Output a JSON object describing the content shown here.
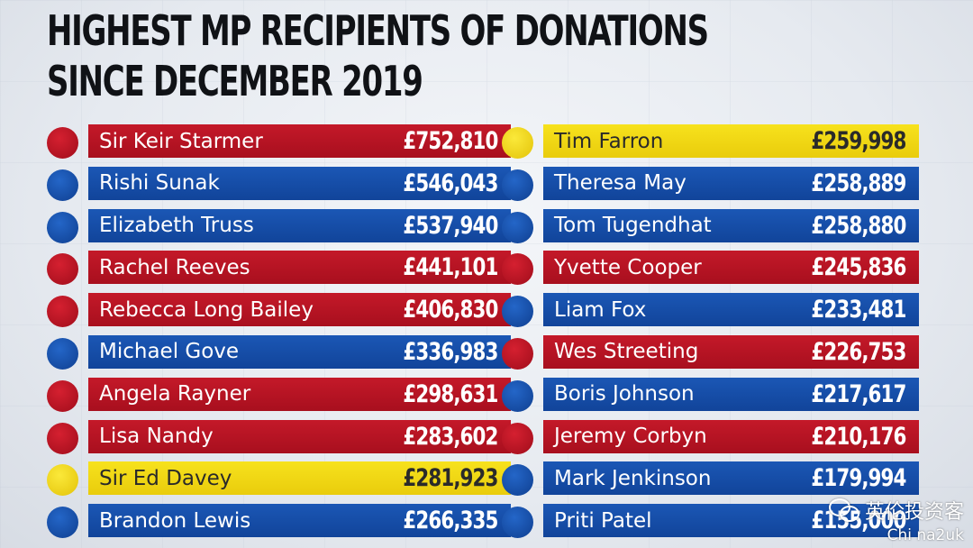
{
  "title": {
    "line1": "HIGHEST MP RECIPIENTS OF DONATIONS",
    "line2": "SINCE DECEMBER 2019"
  },
  "colors": {
    "red": "#b8141f",
    "blue": "#16499f",
    "yellow": "#f4dc17"
  },
  "left_column": [
    {
      "name": "Sir Keir Starmer",
      "amount": "£752,810",
      "party_color": "red"
    },
    {
      "name": "Rishi Sunak",
      "amount": "£546,043",
      "party_color": "blue"
    },
    {
      "name": "Elizabeth Truss",
      "amount": "£537,940",
      "party_color": "blue"
    },
    {
      "name": "Rachel Reeves",
      "amount": "£441,101",
      "party_color": "red"
    },
    {
      "name": "Rebecca Long Bailey",
      "amount": "£406,830",
      "party_color": "red"
    },
    {
      "name": "Michael Gove",
      "amount": "£336,983",
      "party_color": "blue"
    },
    {
      "name": "Angela Rayner",
      "amount": "£298,631",
      "party_color": "red"
    },
    {
      "name": "Lisa Nandy",
      "amount": "£283,602",
      "party_color": "red"
    },
    {
      "name": "Sir Ed Davey",
      "amount": "£281,923",
      "party_color": "yellow"
    },
    {
      "name": "Brandon Lewis",
      "amount": "£266,335",
      "party_color": "blue"
    }
  ],
  "right_column": [
    {
      "name": "Tim Farron",
      "amount": "£259,998",
      "party_color": "yellow"
    },
    {
      "name": "Theresa May",
      "amount": "£258,889",
      "party_color": "blue"
    },
    {
      "name": "Tom Tugendhat",
      "amount": "£258,880",
      "party_color": "blue"
    },
    {
      "name": "Yvette Cooper",
      "amount": "£245,836",
      "party_color": "red"
    },
    {
      "name": "Liam Fox",
      "amount": "£233,481",
      "party_color": "blue"
    },
    {
      "name": "Wes Streeting",
      "amount": "£226,753",
      "party_color": "red"
    },
    {
      "name": "Boris Johnson",
      "amount": "£217,617",
      "party_color": "blue"
    },
    {
      "name": "Jeremy Corbyn",
      "amount": "£210,176",
      "party_color": "red"
    },
    {
      "name": "Mark Jenkinson",
      "amount": "£179,994",
      "party_color": "blue"
    },
    {
      "name": "Priti Patel",
      "amount": "£155,000",
      "party_color": "blue"
    }
  ],
  "watermark": {
    "icon": "wechat-icon",
    "line1": "英伦投资客",
    "line2": "Chi na2uk"
  }
}
